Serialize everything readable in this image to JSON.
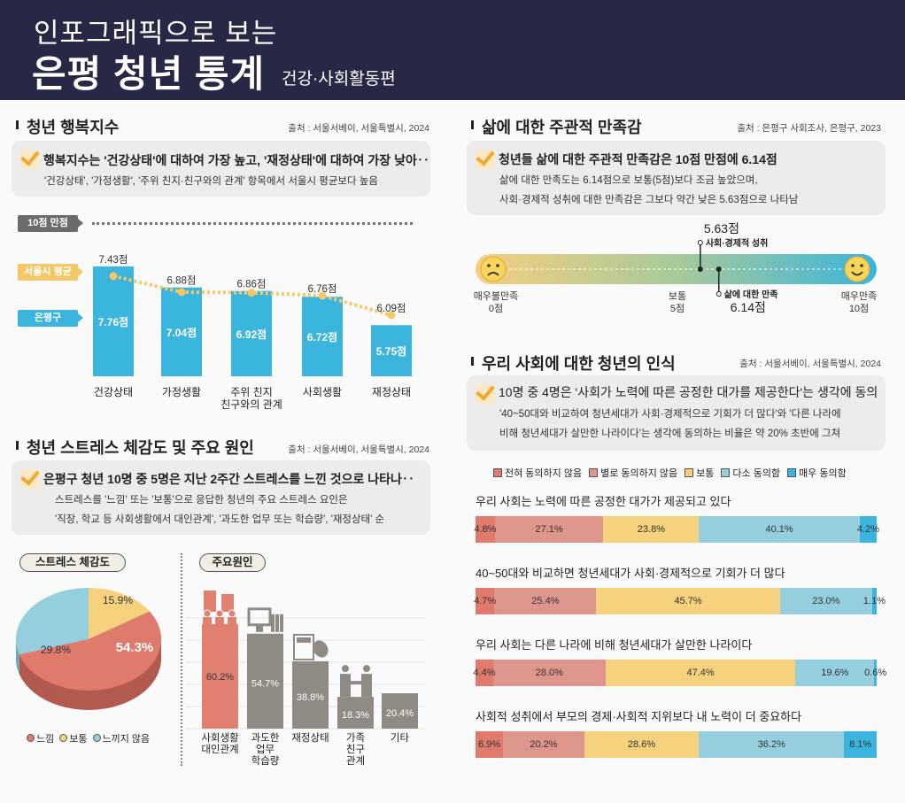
{
  "header": {
    "line1": "인포그래픽으로 보는",
    "title": "은평 청년 통계",
    "subtitle": "건강·사회활동편"
  },
  "happiness": {
    "title": "청년 행복지수",
    "source": "출처 : 서울서베이, 서울특별시, 2024",
    "headline": "행복지수는 '건강상태'에 대하여 가장 높고, '재정상태'에 대하여 가장 낮아‥",
    "detail": "'건강상태', '가정생활', '주위 친지·친구와의 관계' 항목에서 서울시 평균보다 높음",
    "full_score_label": "10점 만점",
    "seoul_label": "서울시 평균",
    "eunpyeong_label": "은평구"
  },
  "stress": {
    "title": "청년 스트레스 체감도 및 주요 원인",
    "source": "출처 : 서울서베이, 서울특별시, 2024",
    "headline": "은평구 청년 10명 중 5명은 지난 2주간 스트레스를 느낀 것으로 나타나‥",
    "detail1": "스트레스를 '느낌' 또는 '보통'으로 응답한 청년의 주요 스트레스 요인은",
    "detail2": "'직장, 학교 등 사회생활에서 대인관계', '과도한 업무 또는 학습량', '재정상태' 순",
    "pie_pill": "스트레스 체감도",
    "cause_pill": "주요원인"
  },
  "satisfaction": {
    "title": "삶에 대한 주관적 만족감",
    "source": "출처 : 은평구 사회조사, 은평구, 2023",
    "headline": "청년들 삶에 대한 주관적 만족감은 10점 만점에 6.14점",
    "detail1": "삶에 대한 만족도는 6.14점으로 보통(5점)보다 조금 높았으며,",
    "detail2": "사회·경제적 성취에 대한 만족감은 그보다 약간 낮은 5.63점으로 나타남"
  },
  "perception": {
    "title": "우리 사회에 대한 청년의 인식",
    "source": "출처 : 서울서베이, 서울특별시, 2024",
    "headline": "10명 중 4명은  '사회가 노력에 따른 공정한 대가를 제공한다'는 생각에 동의",
    "detail1": "'40~50대와 비교하여 청년세대가 사회·경제적으로 기회가 더 많다'와 '다른 나라에",
    "detail2": "비해 청년세대가 살만한 나라이다'는 생각에 동의하는 비율은 약 20% 초반에 그쳐"
  },
  "chart_data": [
    {
      "type": "bar",
      "id": "happiness",
      "unit": "점",
      "categories": [
        "건강상태",
        "가정생활",
        "주위 친지\n친구와의 관계",
        "사회생활",
        "재정상태"
      ],
      "series": [
        {
          "name": "은평구",
          "type": "bar",
          "color": "#3bb5dd",
          "values": [
            7.76,
            7.04,
            6.92,
            6.72,
            5.75
          ]
        },
        {
          "name": "서울시 평균",
          "type": "line",
          "color": "#f4c867",
          "values": [
            7.43,
            6.88,
            6.86,
            6.76,
            6.09
          ]
        }
      ],
      "ylim": [
        4,
        10
      ],
      "max_label": "10점 만점"
    },
    {
      "type": "pie",
      "id": "stress-level",
      "title": "스트레스 체감도",
      "slices": [
        {
          "label": "보통",
          "value": 15.9,
          "color": "#f6d27f"
        },
        {
          "label": "느낌",
          "value": 54.3,
          "color": "#e07a6c"
        },
        {
          "label": "느끼지 않음",
          "value": 29.8,
          "color": "#95cfdd"
        }
      ],
      "legend_order": [
        "느낌",
        "보통",
        "느끼지 않음"
      ],
      "style": "3d"
    },
    {
      "type": "bar",
      "id": "stress-causes",
      "title": "주요원인",
      "categories": [
        "사회생활\n대인관계",
        "과도한\n업무\n학습량",
        "재정상태",
        "가족\n친구\n관계",
        "기타"
      ],
      "values": [
        60.2,
        54.7,
        38.8,
        18.3,
        20.4
      ],
      "unit": "%",
      "colors": [
        "#e08070",
        "#8f8a84",
        "#8f8a84",
        "#8f8a84",
        "#8f8a84"
      ],
      "icons": [
        "people-buildings-icon",
        "monitor-books-icon",
        "calculator-money-icon",
        "handshake-icon",
        ""
      ]
    },
    {
      "type": "scale",
      "id": "life-satisfaction",
      "range": [
        0,
        10
      ],
      "ticks": [
        {
          "value": 0,
          "label": "매우불만족",
          "sub": "0점"
        },
        {
          "value": 5,
          "label": "보통",
          "sub": "5점"
        },
        {
          "value": 10,
          "label": "매우만족",
          "sub": "10점"
        }
      ],
      "markers": [
        {
          "label": "사회·경제적 성취",
          "value": 5.63,
          "value_label": "5.63점",
          "position": "above"
        },
        {
          "label": "삶에 대한 만족",
          "value": 6.14,
          "value_label": "6.14점",
          "position": "below"
        }
      ],
      "gradient": [
        "#f5cf7f",
        "#a9c99a",
        "#3bb5dd"
      ]
    },
    {
      "type": "bar",
      "id": "society-perception",
      "stacked": true,
      "orientation": "horizontal",
      "legend": [
        {
          "name": "전혀 동의하지 않음",
          "color": "#e07a6c"
        },
        {
          "name": "별로 동의하지 않음",
          "color": "#de958c"
        },
        {
          "name": "보통",
          "color": "#f6d27f"
        },
        {
          "name": "다소 동의함",
          "color": "#95cfdd"
        },
        {
          "name": "매우 동의함",
          "color": "#3bb5dd"
        }
      ],
      "unit": "%",
      "rows": [
        {
          "question": "우리 사회는 노력에 따른 공정한 대가가 제공되고 있다",
          "values": [
            4.8,
            27.1,
            23.8,
            40.1,
            4.2
          ]
        },
        {
          "question": "40~50대와 비교하면 청년세대가 사회·경제적으로 기회가 더 많다",
          "values": [
            4.7,
            25.4,
            45.7,
            23.0,
            1.1
          ]
        },
        {
          "question": "우리 사회는 다른 나라에 비해 청년세대가 살만한 나라이다",
          "values": [
            4.4,
            28.0,
            47.4,
            19.6,
            0.6
          ]
        },
        {
          "question": "사회적 성취에서 부모의 경제·사회적 지위보다 내 노력이 더 중요하다",
          "values": [
            6.9,
            20.2,
            28.6,
            36.2,
            8.1
          ]
        }
      ]
    }
  ]
}
